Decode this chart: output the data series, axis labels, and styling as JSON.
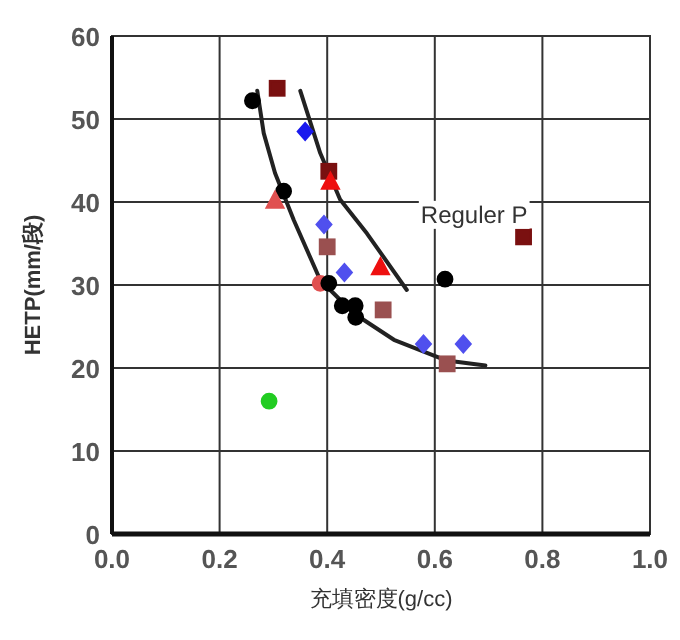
{
  "chart_data": {
    "type": "scatter",
    "xlabel": "充填密度(g/cc)",
    "ylabel": "HETP(mm/段)",
    "xlim": [
      0,
      1
    ],
    "ylim": [
      0,
      60
    ],
    "xticks": [
      {
        "value": 0,
        "label": "0.0"
      },
      {
        "value": 0.2,
        "label": "0.2"
      },
      {
        "value": 0.4,
        "label": "0.4"
      },
      {
        "value": 0.6,
        "label": "0.6"
      },
      {
        "value": 0.8,
        "label": "0.8"
      },
      {
        "value": 1,
        "label": "1.0"
      }
    ],
    "yticks": [
      0,
      10,
      20,
      30,
      40,
      50,
      60
    ],
    "grid": true,
    "annotations": [
      {
        "text": "Reguler P",
        "x": 0.765,
        "y": 35.8
      }
    ],
    "series": [
      {
        "type": "line",
        "color": "#222222",
        "marker": "none",
        "x": [
          0.27,
          0.282,
          0.303,
          0.338,
          0.387,
          0.449,
          0.524,
          0.622,
          0.694
        ],
        "values": [
          53.4,
          48.3,
          43.5,
          37.8,
          30.6,
          26.6,
          23.4,
          20.9,
          20.3
        ]
      },
      {
        "type": "line",
        "color": "#222222",
        "marker": "none",
        "x": [
          0.35,
          0.387,
          0.424,
          0.474,
          0.548
        ],
        "values": [
          53.4,
          45.9,
          40.3,
          36.2,
          29.4
        ]
      },
      {
        "color": "#000000",
        "marker": "circle",
        "x": [
          0.261,
          0.319,
          0.428,
          0.452,
          0.453,
          0.619
        ],
        "values": [
          52.2,
          41.3,
          27.5,
          27.5,
          26.1,
          30.7
        ]
      },
      {
        "color": "#7a1010",
        "marker": "square",
        "x": [
          0.307,
          0.403,
          0.765
        ],
        "values": [
          53.7,
          43.7,
          35.8
        ]
      },
      {
        "color": "#1a1aee",
        "marker": "diamond",
        "x": [
          0.359
        ],
        "values": [
          48.5
        ]
      },
      {
        "color": "#ee1010",
        "marker": "triangle",
        "x": [
          0.406,
          0.499
        ],
        "values": [
          42.5,
          32.2
        ]
      },
      {
        "color": "#e05050",
        "marker": "triangle",
        "x": [
          0.303
        ],
        "values": [
          40.2
        ]
      },
      {
        "color": "#5050ee",
        "marker": "diamond",
        "x": [
          0.394,
          0.432,
          0.579,
          0.653
        ],
        "values": [
          37.3,
          31.5,
          22.9,
          22.9
        ]
      },
      {
        "color": "#9a5050",
        "marker": "square",
        "x": [
          0.4,
          0.504,
          0.623
        ],
        "values": [
          34.6,
          27.0,
          20.5
        ]
      },
      {
        "color": "#e05050",
        "marker": "circle",
        "x": [
          0.387
        ],
        "values": [
          30.2
        ]
      },
      {
        "color": "#000000",
        "marker": "circle",
        "x": [
          0.403
        ],
        "values": [
          30.2
        ]
      },
      {
        "color": "#22cc22",
        "marker": "circle",
        "x": [
          0.292
        ],
        "values": [
          16.0
        ]
      }
    ]
  }
}
